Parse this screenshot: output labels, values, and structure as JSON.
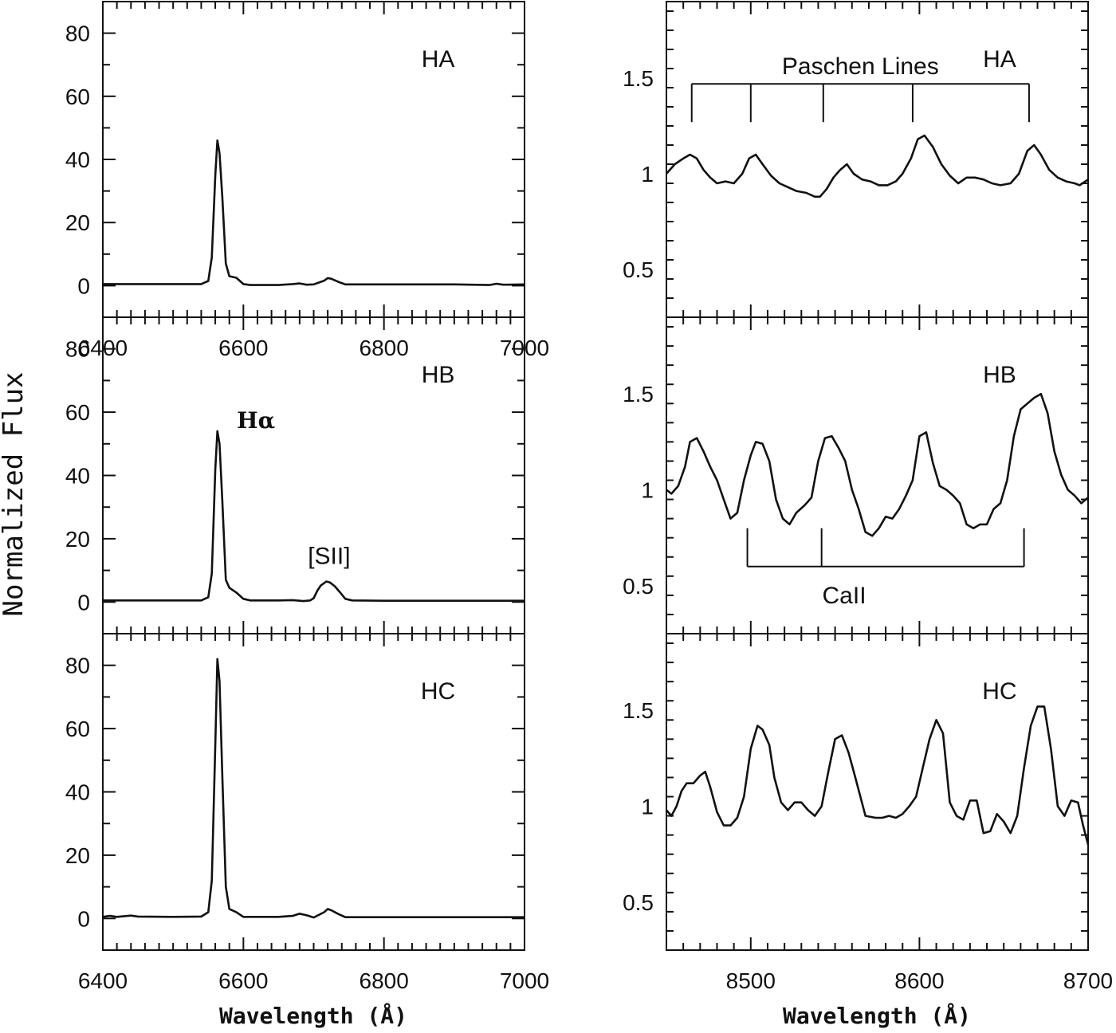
{
  "figure": {
    "ylabel": "Normalized Flux",
    "xlabel_left": "Wavelength (Å)",
    "xlabel_right": "Wavelength (Å)"
  },
  "chart_data": [
    {
      "type": "line",
      "panel": "left-top",
      "label": "HA",
      "xlim": [
        6400,
        7000
      ],
      "ylim": [
        -10,
        90
      ],
      "xticks": [
        6400,
        6600,
        6800,
        7000
      ],
      "xtick_labels": [
        "6400",
        "6600",
        "6800",
        "7000"
      ],
      "yticks": [
        0,
        20,
        40,
        60,
        80
      ],
      "ytick_labels": [
        "0",
        "20",
        "40",
        "60",
        "80"
      ],
      "x": [
        6400,
        6500,
        6540,
        6550,
        6555,
        6560,
        6563,
        6566,
        6570,
        6575,
        6580,
        6590,
        6600,
        6610,
        6650,
        6670,
        6680,
        6690,
        6700,
        6715,
        6720,
        6725,
        6735,
        6745,
        6800,
        6900,
        6950,
        6960,
        6970,
        7000
      ],
      "y": [
        0.5,
        0.5,
        0.5,
        1.5,
        9,
        35,
        46,
        42,
        28,
        7,
        3,
        2.5,
        0.5,
        0.2,
        0.2,
        0.5,
        0.7,
        0.3,
        0.4,
        1.6,
        2.4,
        2.2,
        1.2,
        0.4,
        0.4,
        0.4,
        0.2,
        0.6,
        0.3,
        0.4
      ],
      "annotations": []
    },
    {
      "type": "line",
      "panel": "left-middle",
      "label": "HB",
      "xlim": [
        6400,
        7000
      ],
      "ylim": [
        -10,
        90
      ],
      "xticks": [
        6400,
        6600,
        6800,
        7000
      ],
      "xtick_labels": [
        "",
        "",
        "",
        ""
      ],
      "yticks": [
        0,
        20,
        40,
        60,
        80
      ],
      "ytick_labels": [
        "0",
        "20",
        "40",
        "60",
        "80"
      ],
      "x": [
        6400,
        6500,
        6540,
        6550,
        6555,
        6560,
        6563,
        6566,
        6570,
        6575,
        6580,
        6590,
        6600,
        6610,
        6650,
        6670,
        6685,
        6695,
        6700,
        6705,
        6710,
        6718,
        6723,
        6730,
        6737,
        6745,
        6755,
        6800,
        6900,
        7000
      ],
      "y": [
        0.5,
        0.5,
        0.5,
        1.5,
        9,
        42,
        54,
        50,
        32,
        7,
        4.5,
        3,
        1,
        0.5,
        0.5,
        0.6,
        0.3,
        0.5,
        1.2,
        3.5,
        5.2,
        6.5,
        6.2,
        5,
        3.2,
        1,
        0.5,
        0.4,
        0.4,
        0.4
      ],
      "annotations": [
        {
          "text": "Hα",
          "x": 6568,
          "y": 55
        },
        {
          "text": "[SII]",
          "x": 6722,
          "y": 12
        }
      ]
    },
    {
      "type": "line",
      "panel": "left-bottom",
      "label": "HC",
      "xlim": [
        6400,
        7000
      ],
      "ylim": [
        -10,
        90
      ],
      "xticks": [
        6400,
        6600,
        6800,
        7000
      ],
      "xtick_labels": [
        "6400",
        "6600",
        "6800",
        "7000"
      ],
      "yticks": [
        0,
        20,
        40,
        60,
        80
      ],
      "ytick_labels": [
        "0",
        "20",
        "40",
        "60",
        "80"
      ],
      "x": [
        6400,
        6410,
        6420,
        6440,
        6450,
        6500,
        6540,
        6550,
        6555,
        6560,
        6563,
        6566,
        6570,
        6575,
        6580,
        6590,
        6600,
        6650,
        6670,
        6680,
        6690,
        6700,
        6715,
        6720,
        6725,
        6735,
        6745,
        6800,
        6900,
        7000
      ],
      "y": [
        0.5,
        0.8,
        0.5,
        0.9,
        0.6,
        0.5,
        0.6,
        2,
        12,
        55,
        82,
        75,
        45,
        10,
        3,
        2,
        0.5,
        0.5,
        0.8,
        1.5,
        1,
        0.3,
        2,
        3,
        2.6,
        1.4,
        0.4,
        0.4,
        0.4,
        0.4
      ],
      "annotations": []
    },
    {
      "type": "line",
      "panel": "right-top",
      "label": "HA",
      "xlim": [
        8450,
        8700
      ],
      "ylim": [
        0.25,
        1.9
      ],
      "xticks": [
        8500,
        8600,
        8700
      ],
      "xtick_labels": [
        "",
        "",
        ""
      ],
      "yticks": [
        0.5,
        1,
        1.5
      ],
      "ytick_labels": [
        "0.5",
        "1",
        "1.5"
      ],
      "x": [
        8450,
        8455,
        8460,
        8464,
        8468,
        8472,
        8476,
        8480,
        8485,
        8490,
        8495,
        8499,
        8503,
        8507,
        8512,
        8517,
        8522,
        8527,
        8533,
        8538,
        8541,
        8545,
        8549,
        8553,
        8557,
        8561,
        8566,
        8571,
        8576,
        8581,
        8586,
        8590,
        8595,
        8599,
        8603,
        8608,
        8613,
        8618,
        8623,
        8628,
        8633,
        8638,
        8643,
        8648,
        8654,
        8659,
        8664,
        8668,
        8672,
        8677,
        8682,
        8687,
        8692,
        8695,
        8700
      ],
      "y": [
        1.0,
        1.05,
        1.08,
        1.1,
        1.08,
        1.02,
        0.98,
        0.95,
        0.96,
        0.95,
        1.0,
        1.08,
        1.1,
        1.05,
        0.99,
        0.95,
        0.93,
        0.91,
        0.9,
        0.88,
        0.88,
        0.92,
        0.98,
        1.02,
        1.05,
        1.0,
        0.97,
        0.96,
        0.94,
        0.94,
        0.96,
        1.0,
        1.08,
        1.18,
        1.2,
        1.14,
        1.05,
        0.99,
        0.95,
        0.98,
        0.98,
        0.97,
        0.95,
        0.94,
        0.95,
        1.0,
        1.12,
        1.15,
        1.1,
        1.02,
        0.98,
        0.96,
        0.95,
        0.94,
        0.97
      ],
      "annotations": [
        {
          "text": "Paschen Lines",
          "type": "bracket",
          "y": 1.47,
          "y_bottom": 1.27,
          "x_start": 8465,
          "x_end": 8665,
          "ticks": [
            8465,
            8500,
            8543,
            8596,
            8665
          ]
        }
      ]
    },
    {
      "type": "line",
      "panel": "right-middle",
      "label": "HB",
      "xlim": [
        8450,
        8700
      ],
      "ylim": [
        0.25,
        1.9
      ],
      "xticks": [
        8500,
        8600,
        8700
      ],
      "xtick_labels": [
        "",
        "",
        ""
      ],
      "yticks": [
        0.5,
        1,
        1.5
      ],
      "ytick_labels": [
        "0.5",
        "1",
        "1.5"
      ],
      "x": [
        8450,
        8453,
        8457,
        8461,
        8464,
        8468,
        8472,
        8476,
        8480,
        8484,
        8488,
        8492,
        8496,
        8500,
        8503,
        8507,
        8511,
        8515,
        8519,
        8523,
        8527,
        8532,
        8536,
        8540,
        8544,
        8548,
        8552,
        8556,
        8560,
        8564,
        8568,
        8572,
        8576,
        8580,
        8584,
        8588,
        8592,
        8596,
        8600,
        8604,
        8608,
        8612,
        8616,
        8620,
        8624,
        8628,
        8632,
        8636,
        8640,
        8644,
        8648,
        8652,
        8656,
        8660,
        8664,
        8668,
        8672,
        8676,
        8680,
        8684,
        8688,
        8692,
        8696,
        8700
      ],
      "y": [
        1.0,
        0.98,
        1.02,
        1.12,
        1.25,
        1.27,
        1.2,
        1.12,
        1.05,
        0.95,
        0.85,
        0.88,
        1.05,
        1.18,
        1.25,
        1.24,
        1.15,
        0.95,
        0.85,
        0.82,
        0.88,
        0.92,
        0.96,
        1.15,
        1.27,
        1.28,
        1.22,
        1.15,
        1.0,
        0.9,
        0.78,
        0.76,
        0.8,
        0.86,
        0.85,
        0.9,
        0.97,
        1.05,
        1.28,
        1.3,
        1.14,
        1.02,
        1.0,
        0.97,
        0.93,
        0.82,
        0.8,
        0.82,
        0.82,
        0.9,
        0.93,
        1.05,
        1.28,
        1.42,
        1.45,
        1.48,
        1.5,
        1.4,
        1.2,
        1.08,
        1.0,
        0.97,
        0.93,
        0.96
      ],
      "annotations": [
        {
          "text": "CaII",
          "type": "bracket",
          "y": 0.6,
          "y_top": 0.8,
          "x_start": 8498,
          "x_end": 8662,
          "ticks": [
            8498,
            8542,
            8662
          ]
        }
      ]
    },
    {
      "type": "line",
      "panel": "right-bottom",
      "label": "HC",
      "xlim": [
        8450,
        8700
      ],
      "ylim": [
        0.25,
        1.9
      ],
      "xticks": [
        8500,
        8600,
        8700
      ],
      "xtick_labels": [
        "8500",
        "8600",
        "8700"
      ],
      "yticks": [
        0.5,
        1,
        1.5
      ],
      "ytick_labels": [
        "0.5",
        "1",
        "1.5"
      ],
      "x": [
        8450,
        8453,
        8456,
        8459,
        8462,
        8466,
        8470,
        8473,
        8476,
        8480,
        8484,
        8488,
        8492,
        8496,
        8500,
        8504,
        8507,
        8511,
        8514,
        8518,
        8522,
        8526,
        8530,
        8534,
        8538,
        8542,
        8546,
        8550,
        8554,
        8558,
        8562,
        8568,
        8574,
        8578,
        8582,
        8586,
        8590,
        8594,
        8598,
        8602,
        8606,
        8610,
        8614,
        8618,
        8622,
        8626,
        8630,
        8634,
        8638,
        8642,
        8646,
        8650,
        8654,
        8658,
        8662,
        8666,
        8670,
        8674,
        8678,
        8682,
        8686,
        8690,
        8694,
        8697,
        8700
      ],
      "y": [
        0.98,
        0.95,
        1.0,
        1.08,
        1.12,
        1.12,
        1.16,
        1.18,
        1.1,
        0.97,
        0.9,
        0.9,
        0.94,
        1.05,
        1.3,
        1.42,
        1.4,
        1.32,
        1.15,
        1.02,
        0.98,
        1.02,
        1.02,
        0.98,
        0.95,
        1.0,
        1.18,
        1.35,
        1.37,
        1.28,
        1.15,
        0.95,
        0.94,
        0.94,
        0.95,
        0.94,
        0.96,
        1.0,
        1.05,
        1.2,
        1.35,
        1.45,
        1.38,
        1.02,
        0.95,
        0.93,
        1.03,
        1.03,
        0.86,
        0.87,
        0.96,
        0.92,
        0.86,
        0.95,
        1.2,
        1.42,
        1.52,
        1.52,
        1.3,
        1.0,
        0.95,
        1.03,
        1.02,
        0.9,
        0.8
      ],
      "annotations": []
    }
  ]
}
